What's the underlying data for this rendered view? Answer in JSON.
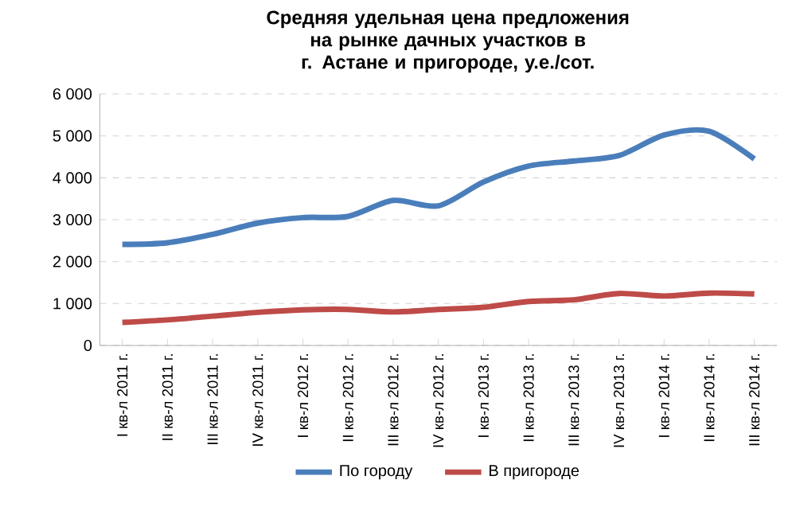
{
  "chart_data": {
    "type": "line",
    "title": "Средняя удельная цена предложения на рынке дачных участков в г. Астане и пригороде, у.е./сот.",
    "categories": [
      "I кв-л 2011 г.",
      "II кв-л 2011 г.",
      "III кв-л 2011 г.",
      "IV кв-л 2011 г.",
      "I кв-л 2012 г.",
      "II кв-л 2012 г.",
      "III кв-л 2012 г.",
      "IV кв-л 2012 г.",
      "I кв-л 2013 г.",
      "II кв-л 2013 г.",
      "III кв-л 2013 г.",
      "IV кв-л 2013 г.",
      "I кв-л 2014 г.",
      "II кв-л 2014 г.",
      "III кв-л 2014 г."
    ],
    "series": [
      {
        "name": "По городу",
        "color": "#4a7ebb",
        "values": [
          2410,
          2450,
          2650,
          2920,
          3050,
          3080,
          3460,
          3330,
          3900,
          4280,
          4400,
          4530,
          5020,
          5110,
          4450
        ]
      },
      {
        "name": "В пригороде",
        "color": "#be4b48",
        "values": [
          550,
          610,
          700,
          790,
          850,
          860,
          800,
          860,
          910,
          1050,
          1090,
          1240,
          1180,
          1250,
          1230
        ]
      }
    ],
    "ylim": [
      0,
      6000
    ],
    "yticks": [
      0,
      {
        "value": 1000,
        "label": "1 000"
      },
      {
        "value": 2000,
        "label": "2 000"
      },
      {
        "value": 3000,
        "label": "3 000"
      },
      {
        "value": 4000,
        "label": "4 000"
      },
      {
        "value": 5000,
        "label": "5 000"
      },
      {
        "value": 6000,
        "label": "6 000"
      }
    ],
    "grid": "y",
    "legend": "bottom",
    "marker": "none",
    "line_style": "solid"
  }
}
